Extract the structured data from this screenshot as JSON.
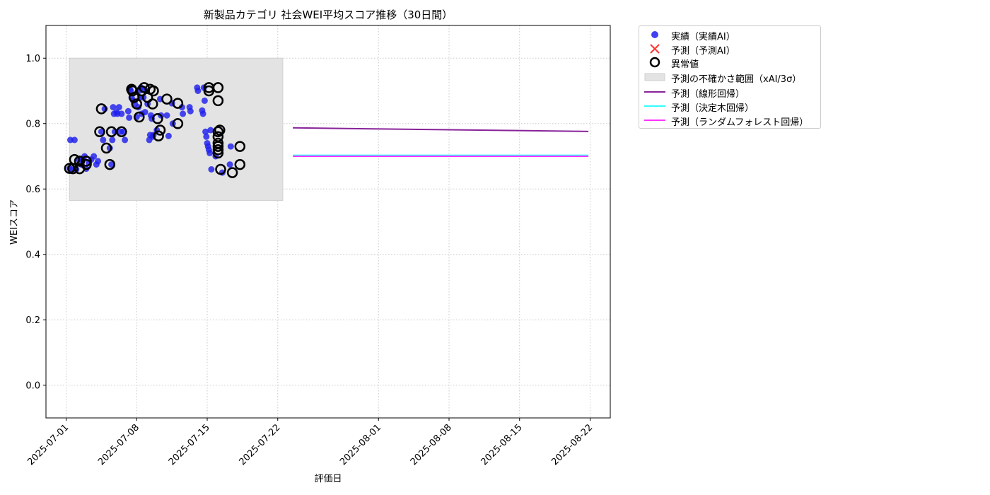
{
  "chart_data": {
    "type": "scatter",
    "title": "新製品カテゴリ 社会WEI平均スコア推移（30日間）",
    "xlabel": "評価日",
    "ylabel": "WEIスコア",
    "xlim": [
      "2025-06-29",
      "2025-08-24"
    ],
    "ylim": [
      -0.1,
      1.1
    ],
    "x_ticks": [
      "2025-07-01",
      "2025-07-08",
      "2025-07-15",
      "2025-07-22",
      "2025-08-01",
      "2025-08-08",
      "2025-08-15",
      "2025-08-22"
    ],
    "y_ticks": [
      0.0,
      0.2,
      0.4,
      0.6,
      0.8,
      1.0
    ],
    "grid": true,
    "legend_position": "outside-right-top",
    "uncertainty_band": {
      "name": "予測の不確かさ範囲（xAI/3σ）",
      "x_start": "2025-07-01 08:00",
      "x_end": "2025-07-22 12:00",
      "y_low": 0.565,
      "y_high": 1.0,
      "color": "#e3e3e3"
    },
    "series": [
      {
        "name": "実績（実績AI）",
        "kind": "scatter",
        "color": "#2020ee",
        "points": [
          [
            "2025-07-01 08:00",
            0.663
          ],
          [
            "2025-07-01 10:00",
            0.75
          ],
          [
            "2025-07-01 12:00",
            0.66
          ],
          [
            "2025-07-01 20:00",
            0.75
          ],
          [
            "2025-07-02 00:00",
            0.66
          ],
          [
            "2025-07-02 06:00",
            0.69
          ],
          [
            "2025-07-02 12:00",
            0.675
          ],
          [
            "2025-07-02 16:00",
            0.69
          ],
          [
            "2025-07-02 20:00",
            0.7
          ],
          [
            "2025-07-03 00:00",
            0.662
          ],
          [
            "2025-07-03 06:00",
            0.68
          ],
          [
            "2025-07-03 12:00",
            0.69
          ],
          [
            "2025-07-03 18:00",
            0.7
          ],
          [
            "2025-07-04 00:00",
            0.675
          ],
          [
            "2025-07-04 04:00",
            0.685
          ],
          [
            "2025-07-04 12:00",
            0.775
          ],
          [
            "2025-07-04 16:00",
            0.75
          ],
          [
            "2025-07-04 20:00",
            0.845
          ],
          [
            "2025-07-05 08:00",
            0.725
          ],
          [
            "2025-07-05 12:00",
            0.675
          ],
          [
            "2025-07-05 14:00",
            0.75
          ],
          [
            "2025-07-05 16:00",
            0.85
          ],
          [
            "2025-07-05 18:00",
            0.83
          ],
          [
            "2025-07-05 20:00",
            0.775
          ],
          [
            "2025-07-06 00:00",
            0.835
          ],
          [
            "2025-07-06 02:00",
            0.83
          ],
          [
            "2025-07-06 06:00",
            0.85
          ],
          [
            "2025-07-06 10:00",
            0.775
          ],
          [
            "2025-07-06 12:00",
            0.83
          ],
          [
            "2025-07-06 16:00",
            0.775
          ],
          [
            "2025-07-06 20:00",
            0.75
          ],
          [
            "2025-07-07 04:00",
            0.838
          ],
          [
            "2025-07-07 06:00",
            0.818
          ],
          [
            "2025-07-07 08:00",
            0.905
          ],
          [
            "2025-07-07 10:00",
            0.9
          ],
          [
            "2025-07-07 12:00",
            0.88
          ],
          [
            "2025-07-07 16:00",
            0.87
          ],
          [
            "2025-07-07 20:00",
            0.86
          ],
          [
            "2025-07-08 00:00",
            0.82
          ],
          [
            "2025-07-08 04:00",
            0.85
          ],
          [
            "2025-07-08 06:00",
            0.9
          ],
          [
            "2025-07-08 08:00",
            0.88
          ],
          [
            "2025-07-08 10:00",
            0.91
          ],
          [
            "2025-07-08 12:00",
            0.83
          ],
          [
            "2025-07-08 14:00",
            0.905
          ],
          [
            "2025-07-08 16:00",
            0.88
          ],
          [
            "2025-07-08 20:00",
            0.835
          ],
          [
            "2025-07-09 00:00",
            0.9
          ],
          [
            "2025-07-09 02:00",
            0.86
          ],
          [
            "2025-07-09 06:00",
            0.75
          ],
          [
            "2025-07-09 08:00",
            0.765
          ],
          [
            "2025-07-09 10:00",
            0.825
          ],
          [
            "2025-07-09 12:00",
            0.815
          ],
          [
            "2025-07-09 14:00",
            0.76
          ],
          [
            "2025-07-09 16:00",
            0.765
          ],
          [
            "2025-07-10 00:00",
            0.78
          ],
          [
            "2025-07-10 08:00",
            0.875
          ],
          [
            "2025-07-10 10:00",
            0.825
          ],
          [
            "2025-07-11 00:00",
            0.825
          ],
          [
            "2025-07-11 04:00",
            0.762
          ],
          [
            "2025-07-11 12:00",
            0.862
          ],
          [
            "2025-07-11 14:00",
            0.8
          ],
          [
            "2025-07-12 12:00",
            0.85
          ],
          [
            "2025-07-12 14:00",
            0.83
          ],
          [
            "2025-07-13 06:00",
            0.85
          ],
          [
            "2025-07-13 08:00",
            0.838
          ],
          [
            "2025-07-14 00:00",
            0.91
          ],
          [
            "2025-07-14 02:00",
            0.9
          ],
          [
            "2025-07-14 12:00",
            0.84
          ],
          [
            "2025-07-14 14:00",
            0.83
          ],
          [
            "2025-07-14 16:00",
            0.91
          ],
          [
            "2025-07-14 18:00",
            0.87
          ],
          [
            "2025-07-14 20:00",
            0.775
          ],
          [
            "2025-07-14 22:00",
            0.76
          ],
          [
            "2025-07-15 00:00",
            0.74
          ],
          [
            "2025-07-15 02:00",
            0.73
          ],
          [
            "2025-07-15 04:00",
            0.72
          ],
          [
            "2025-07-15 06:00",
            0.71
          ],
          [
            "2025-07-15 08:00",
            0.78
          ],
          [
            "2025-07-15 10:00",
            0.66
          ],
          [
            "2025-07-15 20:00",
            0.7
          ],
          [
            "2025-07-16 12:00",
            0.65
          ],
          [
            "2025-07-17 06:00",
            0.675
          ],
          [
            "2025-07-17 08:00",
            0.73
          ]
        ]
      },
      {
        "name": "異常値",
        "kind": "scatter-hollow",
        "color": "#000000",
        "points": [
          [
            "2025-07-01 08:00",
            0.663
          ],
          [
            "2025-07-01 16:00",
            0.662
          ],
          [
            "2025-07-01 20:00",
            0.69
          ],
          [
            "2025-07-02 08:00",
            0.662
          ],
          [
            "2025-07-02 08:00",
            0.685
          ],
          [
            "2025-07-03 00:00",
            0.675
          ],
          [
            "2025-07-03 00:00",
            0.685
          ],
          [
            "2025-07-04 08:00",
            0.775
          ],
          [
            "2025-07-04 12:00",
            0.845
          ],
          [
            "2025-07-05 00:00",
            0.725
          ],
          [
            "2025-07-05 08:00",
            0.675
          ],
          [
            "2025-07-05 12:00",
            0.775
          ],
          [
            "2025-07-06 12:00",
            0.775
          ],
          [
            "2025-07-07 12:00",
            0.905
          ],
          [
            "2025-07-07 14:00",
            0.9
          ],
          [
            "2025-07-07 18:00",
            0.88
          ],
          [
            "2025-07-08 00:00",
            0.86
          ],
          [
            "2025-07-08 06:00",
            0.82
          ],
          [
            "2025-07-08 12:00",
            0.9
          ],
          [
            "2025-07-08 18:00",
            0.91
          ],
          [
            "2025-07-09 02:00",
            0.88
          ],
          [
            "2025-07-09 08:00",
            0.905
          ],
          [
            "2025-07-09 14:00",
            0.86
          ],
          [
            "2025-07-09 16:00",
            0.9
          ],
          [
            "2025-07-10 02:00",
            0.815
          ],
          [
            "2025-07-10 04:00",
            0.762
          ],
          [
            "2025-07-10 08:00",
            0.78
          ],
          [
            "2025-07-11 00:00",
            0.875
          ],
          [
            "2025-07-12 02:00",
            0.862
          ],
          [
            "2025-07-12 02:00",
            0.8
          ],
          [
            "2025-07-15 04:00",
            0.91
          ],
          [
            "2025-07-15 04:00",
            0.9
          ],
          [
            "2025-07-16 02:00",
            0.91
          ],
          [
            "2025-07-16 02:00",
            0.87
          ],
          [
            "2025-07-16 02:00",
            0.775
          ],
          [
            "2025-07-16 02:00",
            0.76
          ],
          [
            "2025-07-16 02:00",
            0.74
          ],
          [
            "2025-07-16 02:00",
            0.73
          ],
          [
            "2025-07-16 02:00",
            0.72
          ],
          [
            "2025-07-16 02:00",
            0.71
          ],
          [
            "2025-07-16 06:00",
            0.78
          ],
          [
            "2025-07-16 08:00",
            0.66
          ],
          [
            "2025-07-17 12:00",
            0.65
          ],
          [
            "2025-07-18 06:00",
            0.675
          ],
          [
            "2025-07-18 06:00",
            0.73
          ]
        ]
      },
      {
        "name": "予測（予測AI）",
        "kind": "marker-x",
        "color": "#ff3333",
        "points": []
      },
      {
        "name": "予測（線形回帰）",
        "kind": "line",
        "color": "#882299",
        "points": [
          [
            "2025-07-23 12:00",
            0.787
          ],
          [
            "2025-08-21 20:00",
            0.776
          ]
        ]
      },
      {
        "name": "予測（決定木回帰）",
        "kind": "line",
        "color": "#33ffff",
        "points": [
          [
            "2025-07-23 12:00",
            0.703
          ],
          [
            "2025-08-21 20:00",
            0.703
          ]
        ]
      },
      {
        "name": "予測（ランダムフォレスト回帰）",
        "kind": "line",
        "color": "#ff33ff",
        "points": [
          [
            "2025-07-23 12:00",
            0.7
          ],
          [
            "2025-08-21 20:00",
            0.7
          ]
        ]
      }
    ],
    "legend": [
      "実績（実績AI）",
      "予測（予測AI）",
      "異常値",
      "予測の不確かさ範囲（xAI/3σ）",
      "予測（線形回帰）",
      "予測（決定木回帰）",
      "予測（ランダムフォレスト回帰）"
    ]
  }
}
